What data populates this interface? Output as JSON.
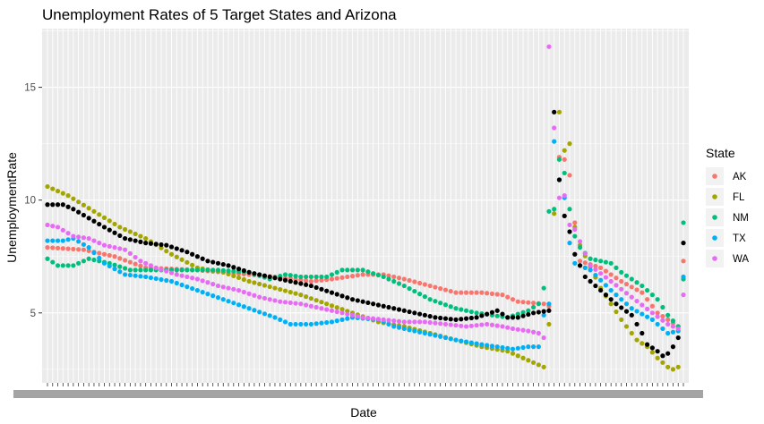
{
  "chart_data": {
    "type": "scatter",
    "title": "Unemployment Rates of 5 Target States and Arizona",
    "xlabel": "Date",
    "ylabel": "UnemploymentRate",
    "x_axis_kind": "categorical dates (one category per month)",
    "xlim": [
      1,
      124
    ],
    "ylim": [
      1.9,
      17.6
    ],
    "y_ticks": [
      5,
      10,
      15
    ],
    "x_tick_labels_legible": false,
    "grid": true,
    "panel_background": "#ebebeb",
    "legend_position": "right",
    "legend_title": "State",
    "series": [
      {
        "name": "AK",
        "color": "#F8766D",
        "gap_after_point": 98,
        "points": [
          [
            1,
            7.9
          ],
          [
            8,
            7.8
          ],
          [
            14,
            7.5
          ],
          [
            20,
            7.0
          ],
          [
            30,
            6.9
          ],
          [
            45,
            6.6
          ],
          [
            52,
            6.4
          ],
          [
            56,
            6.5
          ],
          [
            62,
            6.7
          ],
          [
            66,
            6.7
          ],
          [
            70,
            6.5
          ],
          [
            80,
            5.9
          ],
          [
            85,
            5.9
          ],
          [
            89,
            5.8
          ],
          [
            92,
            5.5
          ],
          [
            97,
            5.4
          ],
          [
            98,
            5.3
          ],
          [
            100,
            11.9
          ],
          [
            101,
            11.8
          ],
          [
            102,
            11.1
          ],
          [
            103,
            9.0
          ],
          [
            104,
            7.3
          ],
          [
            108,
            7.0
          ],
          [
            112,
            6.4
          ],
          [
            116,
            5.9
          ],
          [
            119,
            5.0
          ],
          [
            121,
            4.7
          ],
          [
            123,
            4.4
          ],
          [
            124,
            7.3
          ]
        ]
      },
      {
        "name": "FL",
        "color": "#A3A500",
        "gap_after_point": 97,
        "points": [
          [
            1,
            10.6
          ],
          [
            5,
            10.2
          ],
          [
            10,
            9.5
          ],
          [
            15,
            8.8
          ],
          [
            20,
            8.3
          ],
          [
            25,
            7.6
          ],
          [
            30,
            7.0
          ],
          [
            35,
            6.8
          ],
          [
            40,
            6.4
          ],
          [
            45,
            6.1
          ],
          [
            50,
            5.8
          ],
          [
            55,
            5.4
          ],
          [
            60,
            5.0
          ],
          [
            65,
            4.6
          ],
          [
            70,
            4.4
          ],
          [
            75,
            4.1
          ],
          [
            80,
            3.8
          ],
          [
            85,
            3.5
          ],
          [
            90,
            3.3
          ],
          [
            95,
            2.8
          ],
          [
            97,
            2.6
          ],
          [
            98,
            4.5
          ],
          [
            99,
            9.4
          ],
          [
            100,
            13.9
          ],
          [
            101,
            12.2
          ],
          [
            102,
            12.5
          ],
          [
            103,
            8.8
          ],
          [
            104,
            8.0
          ],
          [
            108,
            6.1
          ],
          [
            112,
            4.7
          ],
          [
            115,
            3.8
          ],
          [
            117,
            3.5
          ],
          [
            119,
            3.0
          ],
          [
            121,
            2.6
          ],
          [
            122,
            2.5
          ],
          [
            123,
            2.6
          ]
        ]
      },
      {
        "name": "NM",
        "color": "#00BF7D",
        "gap_after_point": 98,
        "points": [
          [
            1,
            7.4
          ],
          [
            3,
            7.1
          ],
          [
            6,
            7.1
          ],
          [
            9,
            7.4
          ],
          [
            13,
            7.2
          ],
          [
            17,
            6.9
          ],
          [
            22,
            6.9
          ],
          [
            28,
            6.9
          ],
          [
            34,
            6.9
          ],
          [
            40,
            6.8
          ],
          [
            44,
            6.5
          ],
          [
            47,
            6.7
          ],
          [
            50,
            6.6
          ],
          [
            55,
            6.6
          ],
          [
            58,
            6.9
          ],
          [
            62,
            6.9
          ],
          [
            66,
            6.6
          ],
          [
            70,
            6.2
          ],
          [
            75,
            5.6
          ],
          [
            80,
            5.2
          ],
          [
            84,
            5.0
          ],
          [
            87,
            4.9
          ],
          [
            90,
            4.8
          ],
          [
            94,
            5.1
          ],
          [
            96,
            5.4
          ],
          [
            97,
            6.1
          ],
          [
            98,
            9.5
          ],
          [
            99,
            9.6
          ],
          [
            100,
            11.8
          ],
          [
            101,
            11.2
          ],
          [
            102,
            9.6
          ],
          [
            103,
            8.4
          ],
          [
            104,
            7.9
          ],
          [
            106,
            7.4
          ],
          [
            108,
            7.3
          ],
          [
            110,
            7.2
          ],
          [
            112,
            6.8
          ],
          [
            116,
            6.2
          ],
          [
            119,
            5.6
          ],
          [
            121,
            4.9
          ],
          [
            123,
            4.4
          ],
          [
            124,
            6.5
          ],
          [
            124,
            9.0
          ]
        ]
      },
      {
        "name": "TX",
        "color": "#00B0F6",
        "gap_after_point": 96,
        "points": [
          [
            1,
            8.2
          ],
          [
            4,
            8.2
          ],
          [
            6,
            8.3
          ],
          [
            9,
            7.9
          ],
          [
            12,
            7.2
          ],
          [
            16,
            6.7
          ],
          [
            20,
            6.6
          ],
          [
            25,
            6.4
          ],
          [
            30,
            6.0
          ],
          [
            35,
            5.6
          ],
          [
            40,
            5.2
          ],
          [
            45,
            4.8
          ],
          [
            48,
            4.5
          ],
          [
            52,
            4.5
          ],
          [
            56,
            4.6
          ],
          [
            60,
            4.8
          ],
          [
            65,
            4.7
          ],
          [
            68,
            4.4
          ],
          [
            72,
            4.2
          ],
          [
            76,
            4.0
          ],
          [
            80,
            3.8
          ],
          [
            85,
            3.6
          ],
          [
            88,
            3.5
          ],
          [
            91,
            3.4
          ],
          [
            94,
            3.5
          ],
          [
            96,
            3.5
          ],
          [
            97,
            4.9
          ],
          [
            98,
            5.4
          ],
          [
            99,
            12.6
          ],
          [
            100,
            10.9
          ],
          [
            101,
            10.1
          ],
          [
            102,
            8.1
          ],
          [
            103,
            7.2
          ],
          [
            106,
            6.9
          ],
          [
            110,
            6.0
          ],
          [
            114,
            5.2
          ],
          [
            118,
            4.7
          ],
          [
            121,
            4.1
          ],
          [
            123,
            4.2
          ],
          [
            124,
            6.6
          ]
        ]
      },
      {
        "name": "WA",
        "color": "#E76BF3",
        "gap_after_point": 97,
        "points": [
          [
            1,
            8.9
          ],
          [
            3,
            8.8
          ],
          [
            6,
            8.4
          ],
          [
            9,
            8.3
          ],
          [
            12,
            8.0
          ],
          [
            16,
            7.8
          ],
          [
            19,
            7.3
          ],
          [
            22,
            7.0
          ],
          [
            26,
            6.7
          ],
          [
            30,
            6.5
          ],
          [
            34,
            6.2
          ],
          [
            38,
            6.0
          ],
          [
            42,
            5.7
          ],
          [
            46,
            5.5
          ],
          [
            50,
            5.4
          ],
          [
            54,
            5.2
          ],
          [
            58,
            5.0
          ],
          [
            62,
            4.8
          ],
          [
            66,
            4.7
          ],
          [
            70,
            4.6
          ],
          [
            74,
            4.6
          ],
          [
            78,
            4.5
          ],
          [
            82,
            4.4
          ],
          [
            86,
            4.5
          ],
          [
            89,
            4.4
          ],
          [
            91,
            4.3
          ],
          [
            94,
            4.2
          ],
          [
            96,
            4.1
          ],
          [
            97,
            3.9
          ],
          [
            98,
            16.8
          ],
          [
            99,
            13.2
          ],
          [
            100,
            10.1
          ],
          [
            101,
            10.2
          ],
          [
            102,
            8.9
          ],
          [
            103,
            8.7
          ],
          [
            106,
            7.1
          ],
          [
            110,
            6.4
          ],
          [
            114,
            5.7
          ],
          [
            118,
            5.0
          ],
          [
            121,
            4.5
          ],
          [
            123,
            4.3
          ],
          [
            124,
            5.8
          ]
        ]
      },
      {
        "name": "Arizona (black, unlabeled in legend)",
        "color": "#000000",
        "gap_after_point": 98,
        "points": [
          [
            1,
            9.8
          ],
          [
            4,
            9.8
          ],
          [
            6,
            9.6
          ],
          [
            9,
            9.2
          ],
          [
            12,
            8.8
          ],
          [
            16,
            8.3
          ],
          [
            20,
            8.1
          ],
          [
            24,
            8.0
          ],
          [
            28,
            7.7
          ],
          [
            32,
            7.3
          ],
          [
            36,
            7.1
          ],
          [
            40,
            6.8
          ],
          [
            44,
            6.6
          ],
          [
            48,
            6.4
          ],
          [
            52,
            6.2
          ],
          [
            56,
            5.9
          ],
          [
            60,
            5.6
          ],
          [
            64,
            5.4
          ],
          [
            68,
            5.2
          ],
          [
            72,
            5.0
          ],
          [
            76,
            4.8
          ],
          [
            80,
            4.7
          ],
          [
            84,
            4.8
          ],
          [
            88,
            5.1
          ],
          [
            90,
            4.8
          ],
          [
            92,
            4.8
          ],
          [
            95,
            5.0
          ],
          [
            98,
            5.1
          ],
          [
            99,
            13.9
          ],
          [
            100,
            10.9
          ],
          [
            101,
            9.3
          ],
          [
            102,
            8.6
          ],
          [
            103,
            7.6
          ],
          [
            105,
            6.6
          ],
          [
            108,
            6.0
          ],
          [
            111,
            5.4
          ],
          [
            114,
            4.9
          ],
          [
            116,
            4.1
          ],
          [
            117,
            3.6
          ],
          [
            119,
            3.3
          ],
          [
            120,
            3.1
          ],
          [
            121,
            3.2
          ],
          [
            122,
            3.5
          ],
          [
            123,
            3.9
          ],
          [
            124,
            8.1
          ]
        ]
      }
    ]
  }
}
